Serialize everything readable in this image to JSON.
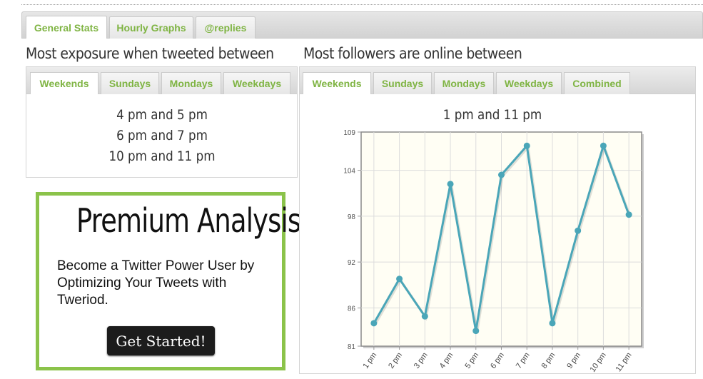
{
  "main_tabs": [
    {
      "label": "General Stats",
      "active": true
    },
    {
      "label": "Hourly Graphs",
      "active": false
    },
    {
      "label": "@replies",
      "active": false
    }
  ],
  "exposure": {
    "title": "Most exposure when tweeted between",
    "tabs": [
      "Weekends",
      "Sundays",
      "Mondays",
      "Weekdays"
    ],
    "active_tab": "Weekends",
    "times": [
      "4 pm and 5 pm",
      "6 pm and 7 pm",
      "10 pm and 11 pm"
    ]
  },
  "followers": {
    "title": "Most followers are online between",
    "tabs": [
      "Weekends",
      "Sundays",
      "Mondays",
      "Weekdays",
      "Combined"
    ],
    "active_tab": "Weekends",
    "summary": "1 pm and 11 pm"
  },
  "promo": {
    "title": "Premium Analysis",
    "text": "Become a Twitter Power User by Optimizing Your Tweets with Tweriod.",
    "button_label": "Get Started!",
    "border_color": "#8bc34a"
  },
  "colors": {
    "tab_text": "#7fb443",
    "line": "#4aa6b8",
    "plot_bg": "#fffef4"
  },
  "chart_data": {
    "type": "line",
    "categories": [
      "1 pm",
      "2 pm",
      "3 pm",
      "4 pm",
      "5 pm",
      "6 pm",
      "7 pm",
      "8 pm",
      "9 pm",
      "10 pm",
      "11 pm"
    ],
    "values": [
      84,
      89.8,
      84.9,
      102.2,
      83,
      103.4,
      107.2,
      84,
      96.1,
      107.2,
      98.2
    ],
    "yticks": [
      "81",
      "86",
      "92",
      "98",
      "104",
      "109"
    ],
    "ylim": [
      81,
      109
    ],
    "grid": true
  }
}
